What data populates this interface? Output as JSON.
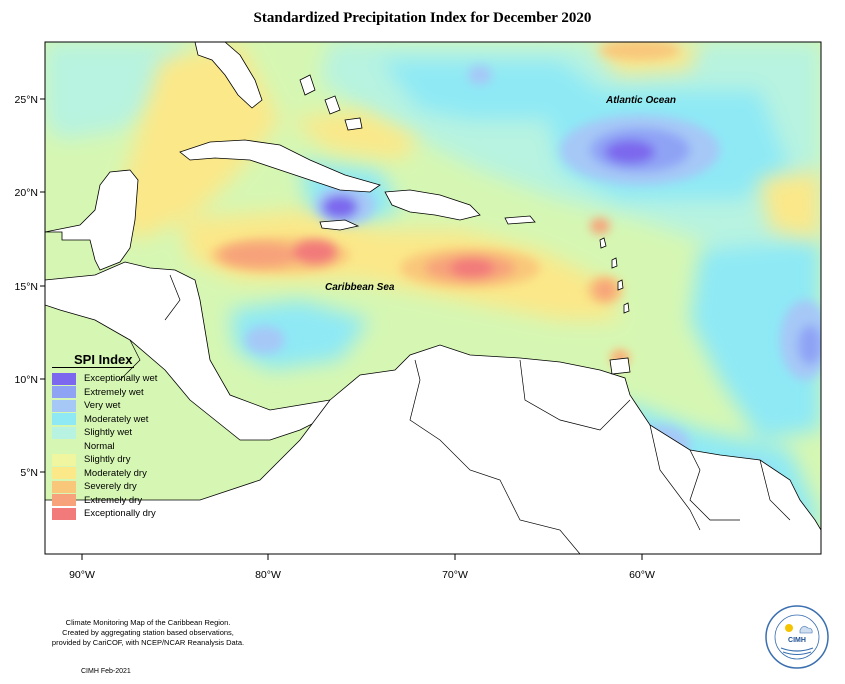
{
  "title": "Standardized Precipitation Index for December 2020",
  "ocean_labels": {
    "atlantic": "Atlantic Ocean",
    "caribbean": "Caribbean Sea"
  },
  "axes": {
    "lat_ticks": [
      "25°N",
      "20°N",
      "15°N",
      "10°N",
      "5°N"
    ],
    "lon_ticks": [
      "90°W",
      "80°W",
      "70°W",
      "60°W"
    ]
  },
  "legend": {
    "title": "SPI Index",
    "items": [
      {
        "label": "Exceptionally wet",
        "color": "#7b68ee"
      },
      {
        "label": "Extremely wet",
        "color": "#8fa3f5"
      },
      {
        "label": "Very wet",
        "color": "#a6c8f7"
      },
      {
        "label": "Moderately wet",
        "color": "#8ee9f5"
      },
      {
        "label": "Slightly wet",
        "color": "#b7f3e0"
      },
      {
        "label": "Normal",
        "color": "#d6f7b3"
      },
      {
        "label": "Slightly dry",
        "color": "#f0f5a0"
      },
      {
        "label": "Moderately dry",
        "color": "#fbe889"
      },
      {
        "label": "Severely dry",
        "color": "#f9c77a"
      },
      {
        "label": "Extremely dry",
        "color": "#f7a27a"
      },
      {
        "label": "Exceptionally dry",
        "color": "#f27a7a"
      }
    ]
  },
  "footer": {
    "line1": "Climate Monitoring Map of the Caribbean Region.",
    "line2": "Created by aggregating station based observations,",
    "line3": "provided by CariCOF, with NCEP/NCAR Reanalysis Data.",
    "stamp": "CIMH Feb-2021"
  },
  "logo": {
    "text": "CIMH"
  }
}
